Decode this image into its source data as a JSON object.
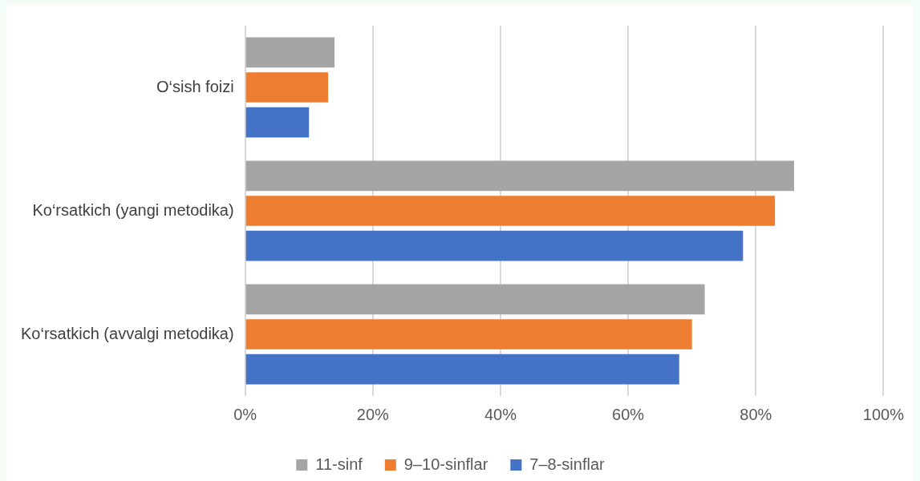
{
  "chart_data": {
    "type": "bar",
    "orientation": "horizontal",
    "categories": [
      "O‘sish foizi",
      "Ko‘rsatkich (yangi metodika)",
      "Ko‘rsatkich (avvalgi metodika)"
    ],
    "series": [
      {
        "name": "11-sinf",
        "color": "#a5a5a5",
        "values": [
          14,
          86,
          72
        ]
      },
      {
        "name": "9–10-sinflar",
        "color": "#ed7d31",
        "values": [
          13,
          83,
          70
        ]
      },
      {
        "name": "7–8-sinflar",
        "color": "#4472c4",
        "values": [
          10,
          78,
          68
        ]
      }
    ],
    "xlim": [
      0,
      100
    ],
    "xticks": [
      {
        "value": 0,
        "label": "0%"
      },
      {
        "value": 20,
        "label": "20%"
      },
      {
        "value": 40,
        "label": "40%"
      },
      {
        "value": 60,
        "label": "60%"
      },
      {
        "value": 80,
        "label": "80%"
      },
      {
        "value": 100,
        "label": "100%"
      }
    ],
    "grid": "x",
    "legend": "bottom"
  }
}
